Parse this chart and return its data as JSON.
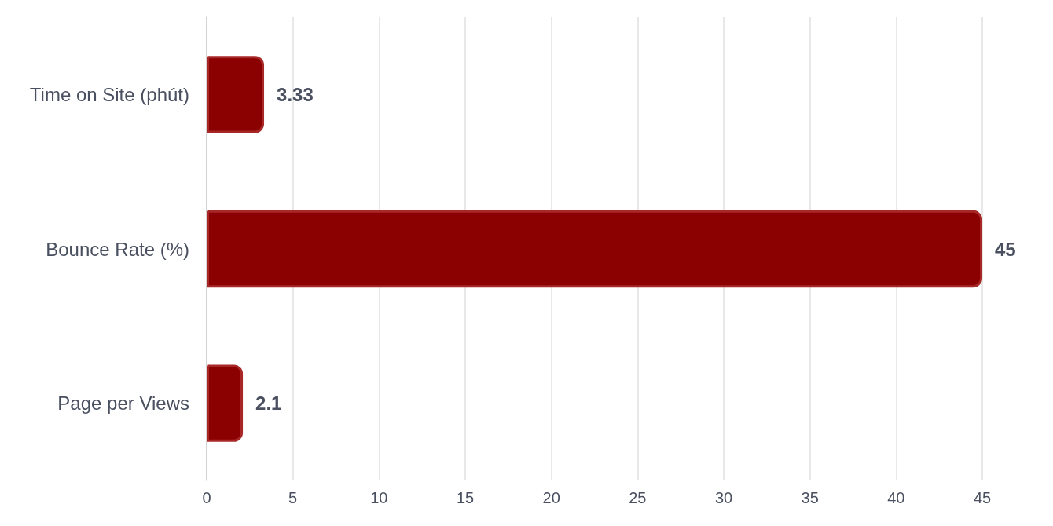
{
  "chart_data": {
    "type": "bar",
    "orientation": "horizontal",
    "categories": [
      "Time on Site (phút)",
      "Bounce Rate (%)",
      "Page per Views"
    ],
    "values": [
      3.33,
      45,
      2.1
    ],
    "color": "#8b0000",
    "xlim": [
      0,
      45
    ],
    "xticks": [
      0,
      5,
      10,
      15,
      20,
      25,
      30,
      35,
      40,
      45
    ],
    "grid": "x",
    "data_labels": true
  }
}
